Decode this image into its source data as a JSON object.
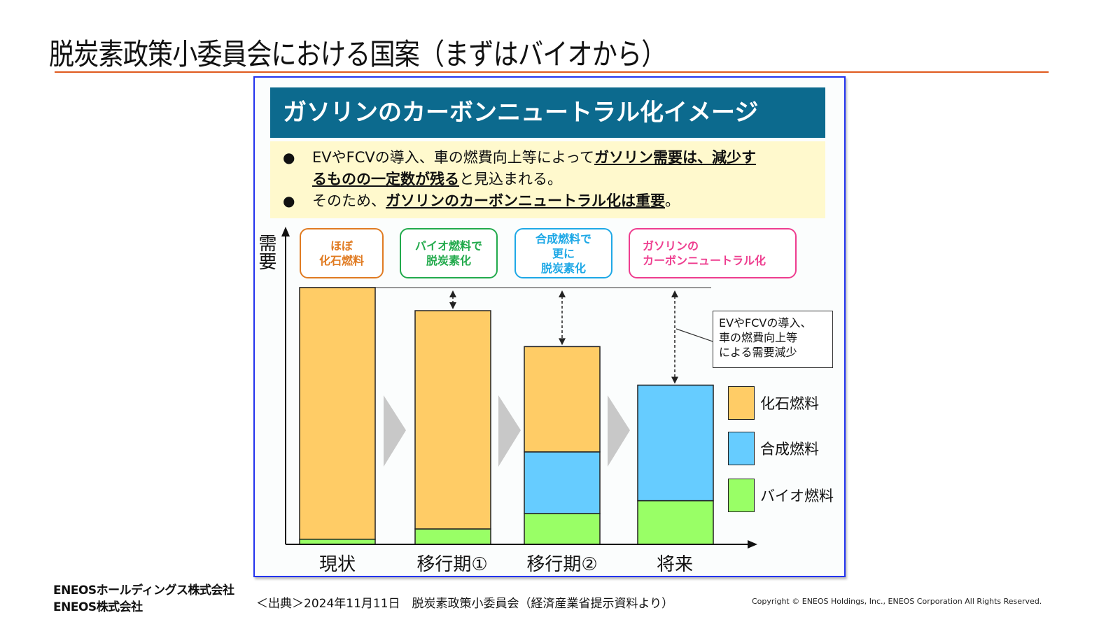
{
  "slide": {
    "title": "脱炭素政策小委員会における国案（まずはバイオから）"
  },
  "figure": {
    "header": "ガソリンのカーボンニュートラル化イメージ",
    "notes": [
      {
        "bullet": "●",
        "line1_plain": "EVやFCVの導入、車の燃費向上等によって",
        "line1_bold": "ガソリン需要は、減少す",
        "line2_bold": "るものの一定数が残る",
        "line2_plain": "と見込まれる。"
      },
      {
        "bullet": "●",
        "plain": "そのため、",
        "bold": "ガソリンのカーボンニュートラル化は重要",
        "end": "。"
      }
    ],
    "stage_boxes": [
      {
        "line1": "ほぼ",
        "line2": "化石燃料",
        "line3": "",
        "color": "#e07b22"
      },
      {
        "line1": "バイオ燃料で",
        "line2": "脱炭素化",
        "line3": "",
        "color": "#22aa4c"
      },
      {
        "line1": "合成燃料で",
        "line2": "更に",
        "line3": "脱炭素化",
        "color": "#1ea8e6"
      },
      {
        "line1": "ガソリンの",
        "line2": "カーボンニュートラル化",
        "line3": "",
        "color": "#ee3d8f"
      }
    ],
    "callout": {
      "line1": "EVやFCVの導入、",
      "line2": "車の燃費向上等",
      "line3": "による需要減少"
    }
  },
  "chart_data": {
    "type": "bar",
    "stacked": true,
    "title": "ガソリンのカーボンニュートラル化イメージ",
    "ylabel": "需要",
    "xlabel": "",
    "categories": [
      "現状",
      "移行期①",
      "移行期②",
      "将来"
    ],
    "series": [
      {
        "name": "バイオ燃料",
        "color": "#99ff66",
        "values": [
          2,
          6,
          12,
          17
        ]
      },
      {
        "name": "合成燃料",
        "color": "#66ccff",
        "values": [
          0,
          0,
          24,
          45
        ]
      },
      {
        "name": "化石燃料",
        "color": "#ffcc66",
        "values": [
          98,
          85,
          41,
          0
        ]
      }
    ],
    "legend_order": [
      "化石燃料",
      "合成燃料",
      "バイオ燃料"
    ],
    "legend_position": "right",
    "ylim": [
      0,
      100
    ],
    "grid": false,
    "reference_line": 100
  },
  "footer": {
    "company1": "ENEOSホールディングス株式会社",
    "company2": "ENEOS株式会社",
    "source": "＜出典＞2024年11月11日　脱炭素政策小委員会（経済産業省提示資料より）",
    "copyright": "Copyright © ENEOS Holdings, Inc., ENEOS Corporation  All Rights Reserved."
  }
}
